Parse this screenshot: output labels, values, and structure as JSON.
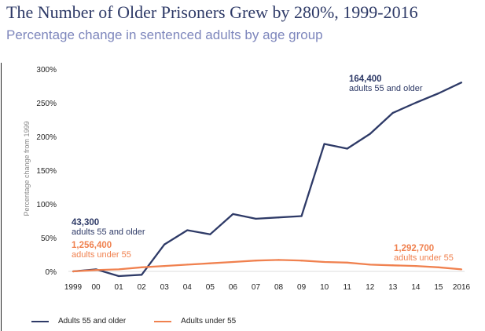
{
  "colors": {
    "older": "#2e3a67",
    "younger": "#f0814f",
    "grid": "#cfcfcf",
    "text": "#222222"
  },
  "chart_data": {
    "type": "line",
    "title": "The Number of Older Prisoners Grew by 280%, 1999-2016",
    "subtitle": "Percentage change in sentenced adults by age group",
    "ylabel": "Percentage change from 1999",
    "xlabel": "",
    "x": [
      "1999",
      "00",
      "01",
      "02",
      "03",
      "04",
      "05",
      "06",
      "07",
      "08",
      "09",
      "10",
      "11",
      "12",
      "13",
      "14",
      "15",
      "2016"
    ],
    "ylim": [
      0,
      300
    ],
    "y_ticks": [
      "0%",
      "50%",
      "100%",
      "150%",
      "200%",
      "250%",
      "300%"
    ],
    "grid": false,
    "legend": "bottom",
    "series": [
      {
        "name": "Adults 55 and older",
        "color": "#2e3a67",
        "values": [
          0,
          3,
          -7,
          -5,
          40,
          61,
          55,
          85,
          78,
          80,
          82,
          189,
          182,
          204,
          235,
          250,
          264,
          280
        ]
      },
      {
        "name": "Adults under 55",
        "color": "#f0814f",
        "values": [
          0,
          2,
          3,
          6,
          8,
          10,
          12,
          14,
          16,
          17,
          16,
          14,
          13,
          10,
          9,
          8,
          6,
          3
        ]
      }
    ],
    "annotations": [
      {
        "value": "43,300",
        "text": "adults 55 and older",
        "series": "Adults 55 and older",
        "year": "1999"
      },
      {
        "value": "1,256,400",
        "text": "adults under 55",
        "series": "Adults under 55",
        "year": "1999"
      },
      {
        "value": "164,400",
        "text": "adults 55 and older",
        "series": "Adults 55 and older",
        "year": "2016"
      },
      {
        "value": "1,292,700",
        "text": "adults under 55",
        "series": "Adults under 55",
        "year": "2016"
      }
    ]
  }
}
